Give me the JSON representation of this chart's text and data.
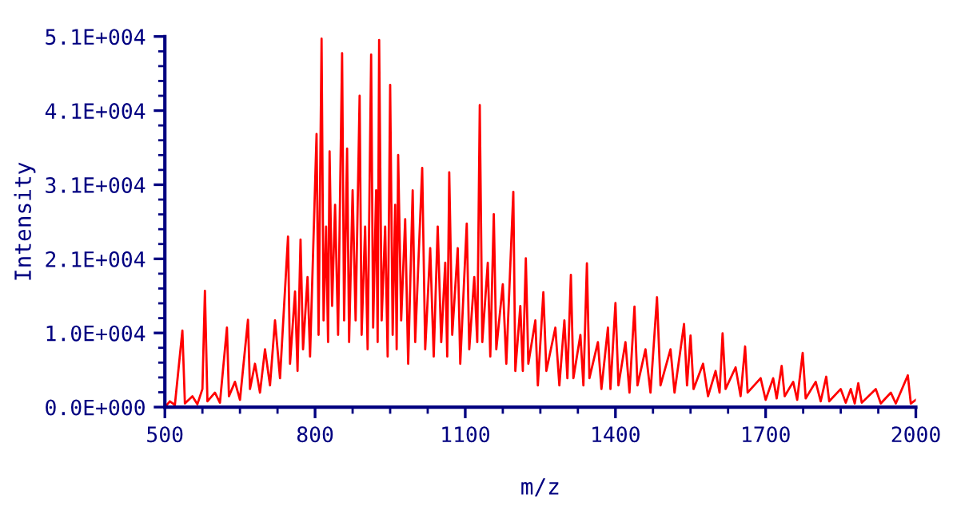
{
  "chart_data": {
    "type": "line",
    "xlabel": "m/z",
    "ylabel": "Intensity",
    "xlim": [
      500,
      2000
    ],
    "xticks": [
      500,
      800,
      1100,
      1400,
      1700,
      2000
    ],
    "ylim": [
      0,
      51300
    ],
    "yticks": [
      {
        "value": 0,
        "label": "0.0E+000"
      },
      {
        "value": 10260,
        "label": "1.0E+004"
      },
      {
        "value": 20520,
        "label": "2.1E+004"
      },
      {
        "value": 30780,
        "label": "3.1E+004"
      },
      {
        "value": 41040,
        "label": "4.1E+004"
      },
      {
        "value": 51300,
        "label": "5.1E+004"
      }
    ],
    "grid": false,
    "marker": "none",
    "line_style": "solid",
    "series": [
      {
        "color": "#ff0000",
        "x": [
          500,
          510,
          520,
          535,
          540,
          555,
          565,
          575,
          580,
          585,
          600,
          610,
          624,
          628,
          640,
          650,
          666,
          670,
          680,
          690,
          700,
          710,
          720,
          730,
          746,
          750,
          760,
          765,
          771,
          776,
          785,
          790,
          803,
          807,
          813,
          817,
          822,
          826,
          829,
          834,
          840,
          846,
          854,
          858,
          864,
          868,
          875,
          881,
          889,
          893,
          900,
          905,
          912,
          916,
          922,
          925,
          928,
          933,
          940,
          945,
          950,
          955,
          960,
          963,
          966,
          972,
          980,
          986,
          995,
          1000,
          1014,
          1020,
          1030,
          1037,
          1045,
          1052,
          1060,
          1064,
          1068,
          1074,
          1085,
          1090,
          1103,
          1108,
          1118,
          1124,
          1129,
          1134,
          1145,
          1150,
          1157,
          1162,
          1175,
          1182,
          1196,
          1200,
          1210,
          1215,
          1221,
          1226,
          1240,
          1245,
          1256,
          1262,
          1280,
          1288,
          1298,
          1304,
          1311,
          1316,
          1330,
          1336,
          1343,
          1348,
          1365,
          1372,
          1385,
          1390,
          1400,
          1406,
          1420,
          1428,
          1438,
          1444,
          1460,
          1470,
          1483,
          1490,
          1510,
          1518,
          1537,
          1543,
          1550,
          1556,
          1575,
          1585,
          1600,
          1608,
          1614,
          1620,
          1640,
          1650,
          1659,
          1664,
          1690,
          1700,
          1715,
          1722,
          1732,
          1738,
          1755,
          1763,
          1774,
          1780,
          1800,
          1810,
          1821,
          1827,
          1850,
          1860,
          1870,
          1878,
          1885,
          1892,
          1920,
          1930,
          1950,
          1960,
          1984,
          1990,
          2000
        ],
        "values": [
          0,
          800,
          300,
          10600,
          500,
          1500,
          400,
          2500,
          16100,
          800,
          2000,
          600,
          11000,
          1500,
          3500,
          1000,
          12100,
          2500,
          6000,
          2000,
          8000,
          3000,
          12000,
          4000,
          23600,
          6000,
          16000,
          5000,
          23200,
          8000,
          18000,
          7000,
          37800,
          10000,
          51000,
          12000,
          25000,
          9000,
          35400,
          14000,
          28000,
          10000,
          49000,
          12000,
          35800,
          9000,
          30000,
          12000,
          43100,
          10000,
          25000,
          8000,
          48800,
          11000,
          30000,
          9000,
          50800,
          12000,
          25000,
          7000,
          44600,
          10000,
          28000,
          8000,
          34900,
          12000,
          26000,
          6000,
          30000,
          9000,
          33100,
          8000,
          22000,
          7000,
          25000,
          9000,
          20000,
          7000,
          32500,
          10000,
          22000,
          6000,
          25400,
          8000,
          18000,
          9000,
          41800,
          9000,
          20000,
          7000,
          26700,
          8000,
          17000,
          6000,
          29800,
          5000,
          14000,
          5000,
          20600,
          6000,
          12000,
          3000,
          15900,
          5000,
          11000,
          3000,
          12000,
          4000,
          18300,
          4000,
          10000,
          3000,
          19900,
          4000,
          9000,
          2500,
          11000,
          2500,
          14400,
          3000,
          9000,
          2000,
          13900,
          3000,
          8000,
          2000,
          15200,
          3000,
          8000,
          2000,
          11500,
          3000,
          9900,
          2500,
          6000,
          1500,
          5000,
          2000,
          10200,
          2500,
          5500,
          1500,
          8400,
          2000,
          4000,
          1000,
          4000,
          1200,
          5700,
          1500,
          3500,
          1000,
          7500,
          1200,
          3500,
          800,
          4200,
          800,
          2500,
          600,
          2500,
          500,
          3300,
          600,
          2500,
          500,
          2000,
          500,
          4400,
          500,
          1000
        ]
      }
    ]
  }
}
